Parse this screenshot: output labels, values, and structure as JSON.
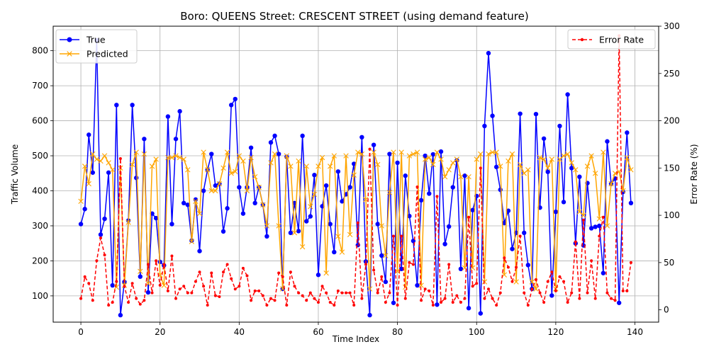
{
  "chart_data": {
    "type": "line",
    "title": "Boro: QUEENS Street: CRESCENT STREET (using demand feature)",
    "xlabel": "Time Index",
    "ylabel_left": "Traffic Volume",
    "ylabel_right": "Error Rate (%)",
    "xlim": [
      -7,
      146
    ],
    "ylim_left": [
      25,
      870
    ],
    "ylim_right": [
      -13,
      300
    ],
    "x_ticks": [
      0,
      20,
      40,
      60,
      80,
      100,
      120,
      140
    ],
    "y_ticks_left": [
      100,
      200,
      300,
      400,
      500,
      600,
      700,
      800
    ],
    "y_ticks_right": [
      0,
      50,
      100,
      150,
      200,
      250,
      300
    ],
    "grid": true,
    "legend_left_position": "upper-left",
    "legend_right_position": "upper-right",
    "series": [
      {
        "name": "True",
        "axis": "left",
        "color": "#0000ff",
        "marker": "circle",
        "values": [
          305,
          348,
          560,
          452,
          830,
          275,
          320,
          452,
          130,
          645,
          45,
          140,
          315,
          645,
          437,
          155,
          548,
          110,
          335,
          322,
          197,
          187,
          612,
          305,
          548,
          627,
          365,
          360,
          258,
          375,
          228,
          400,
          460,
          505,
          415,
          420,
          284,
          350,
          645,
          662,
          410,
          335,
          410,
          523,
          365,
          410,
          360,
          270,
          538,
          557,
          505,
          120,
          497,
          280,
          365,
          285,
          557,
          313,
          327,
          445,
          160,
          356,
          415,
          305,
          225,
          455,
          370,
          390,
          410,
          477,
          245,
          553,
          198,
          45,
          531,
          305,
          215,
          140,
          505,
          80,
          480,
          177,
          443,
          328,
          257,
          130,
          373,
          500,
          392,
          504,
          75,
          512,
          248,
          298,
          410,
          487,
          177,
          443,
          65,
          345,
          385,
          50,
          585,
          793,
          614,
          468,
          403,
          308,
          343,
          234,
          280,
          620,
          280,
          188,
          120,
          619,
          352,
          549,
          454,
          101,
          340,
          585,
          368,
          675,
          465,
          250,
          440,
          244,
          422,
          293,
          297,
          300,
          165,
          541,
          420,
          435,
          80,
          397,
          566,
          365
        ]
      },
      {
        "name": "Predicted",
        "axis": "left",
        "color": "#ffa500",
        "marker": "x",
        "values": [
          370,
          470,
          420,
          505,
          490,
          485,
          500,
          480,
          460,
          125,
          465,
          130,
          310,
          475,
          510,
          170,
          505,
          135,
          470,
          490,
          160,
          130,
          495,
          495,
          500,
          495,
          490,
          460,
          255,
          370,
          335,
          510,
          460,
          400,
          400,
          420,
          465,
          510,
          450,
          455,
          500,
          485,
          400,
          495,
          440,
          410,
          360,
          300,
          480,
          505,
          300,
          120,
          500,
          470,
          280,
          485,
          240,
          470,
          355,
          390,
          470,
          495,
          165,
          470,
          500,
          270,
          225,
          500,
          275,
          445,
          510,
          505,
          375,
          120,
          510,
          475,
          300,
          215,
          395,
          510,
          170,
          510,
          125,
          500,
          505,
          510,
          130,
          490,
          495,
          475,
          510,
          490,
          440,
          460,
          480,
          490,
          440,
          180,
          440,
          180,
          490,
          505,
          140,
          505,
          510,
          510,
          470,
          160,
          485,
          505,
          140,
          475,
          450,
          460,
          140,
          120,
          495,
          490,
          465,
          490,
          120,
          490,
          500,
          505,
          480,
          460,
          340,
          330,
          470,
          500,
          450,
          320,
          510,
          300,
          420,
          450,
          455,
          400,
          495,
          460
        ]
      },
      {
        "name": "Error Rate",
        "axis": "right",
        "color": "#ff0000",
        "marker": "circle-small",
        "linestyle": "dashed",
        "values": [
          12,
          35,
          28,
          10,
          52,
          76,
          58,
          5,
          8,
          30,
          160,
          25,
          8,
          28,
          12,
          6,
          10,
          48,
          18,
          52,
          26,
          48,
          20,
          57,
          12,
          22,
          25,
          18,
          18,
          30,
          40,
          25,
          5,
          39,
          15,
          14,
          40,
          48,
          33,
          22,
          25,
          44,
          36,
          10,
          20,
          20,
          15,
          5,
          12,
          10,
          39,
          35,
          5,
          40,
          25,
          18,
          15,
          10,
          18,
          12,
          8,
          25,
          18,
          8,
          5,
          20,
          18,
          18,
          18,
          5,
          92,
          12,
          48,
          170,
          42,
          18,
          35,
          8,
          18,
          78,
          5,
          78,
          12,
          50,
          48,
          130,
          10,
          22,
          20,
          5,
          120,
          8,
          12,
          48,
          8,
          15,
          8,
          12,
          98,
          25,
          28,
          150,
          12,
          22,
          12,
          5,
          18,
          55,
          45,
          30,
          45,
          78,
          18,
          5,
          22,
          32,
          18,
          8,
          30,
          40,
          20,
          35,
          30,
          8,
          18,
          72,
          12,
          95,
          18,
          52,
          12,
          78,
          98,
          18,
          12,
          10,
          290,
          20,
          20,
          50
        ]
      }
    ]
  }
}
